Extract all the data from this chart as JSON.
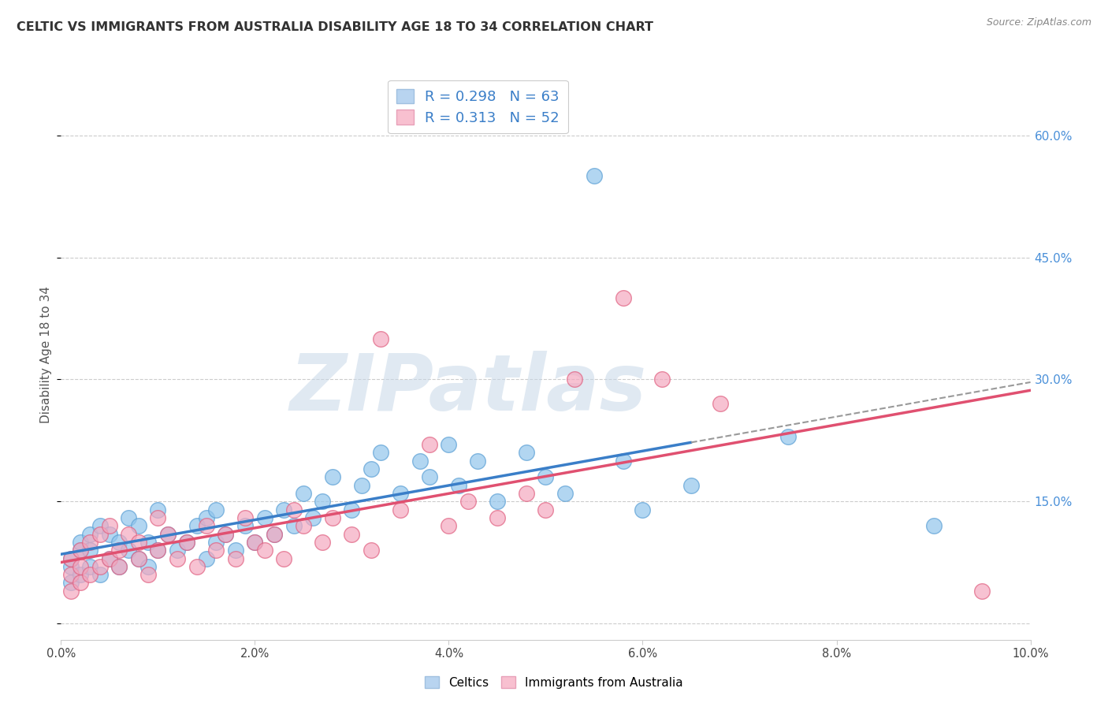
{
  "title": "CELTIC VS IMMIGRANTS FROM AUSTRALIA DISABILITY AGE 18 TO 34 CORRELATION CHART",
  "source_text": "Source: ZipAtlas.com",
  "ylabel": "Disability Age 18 to 34",
  "xlim": [
    0.0,
    0.1
  ],
  "ylim": [
    -0.02,
    0.68
  ],
  "xticks": [
    0.0,
    0.02,
    0.04,
    0.06,
    0.08,
    0.1
  ],
  "ytick_positions": [
    0.0,
    0.15,
    0.3,
    0.45,
    0.6
  ],
  "celtics_color": "#92C5EC",
  "celtics_edge": "#5A9FD4",
  "immigrants_color": "#F4A8BF",
  "immigrants_edge": "#E06080",
  "celtics_R": 0.298,
  "celtics_N": 63,
  "immigrants_R": 0.313,
  "immigrants_N": 52,
  "celtics_line_color": "#3A7EC8",
  "immigrants_line_color": "#E05070",
  "dashed_line_color": "#999999",
  "watermark": "ZIPatlas",
  "watermark_color_zip": "#c8d8e8",
  "watermark_color_atlas": "#a0b8cc",
  "background_color": "#ffffff",
  "grid_color": "#cccccc",
  "celtics_x": [
    0.001,
    0.001,
    0.001,
    0.002,
    0.002,
    0.002,
    0.003,
    0.003,
    0.003,
    0.004,
    0.004,
    0.005,
    0.005,
    0.006,
    0.006,
    0.007,
    0.007,
    0.008,
    0.008,
    0.009,
    0.009,
    0.01,
    0.01,
    0.011,
    0.012,
    0.013,
    0.014,
    0.015,
    0.015,
    0.016,
    0.016,
    0.017,
    0.018,
    0.019,
    0.02,
    0.021,
    0.022,
    0.023,
    0.024,
    0.025,
    0.026,
    0.027,
    0.028,
    0.03,
    0.031,
    0.032,
    0.033,
    0.035,
    0.037,
    0.038,
    0.04,
    0.041,
    0.043,
    0.045,
    0.048,
    0.05,
    0.052,
    0.055,
    0.058,
    0.06,
    0.065,
    0.075,
    0.09
  ],
  "celtics_y": [
    0.05,
    0.07,
    0.08,
    0.06,
    0.09,
    0.1,
    0.07,
    0.09,
    0.11,
    0.06,
    0.12,
    0.08,
    0.11,
    0.07,
    0.1,
    0.09,
    0.13,
    0.08,
    0.12,
    0.07,
    0.1,
    0.09,
    0.14,
    0.11,
    0.09,
    0.1,
    0.12,
    0.08,
    0.13,
    0.1,
    0.14,
    0.11,
    0.09,
    0.12,
    0.1,
    0.13,
    0.11,
    0.14,
    0.12,
    0.16,
    0.13,
    0.15,
    0.18,
    0.14,
    0.17,
    0.19,
    0.21,
    0.16,
    0.2,
    0.18,
    0.22,
    0.17,
    0.2,
    0.15,
    0.21,
    0.18,
    0.16,
    0.55,
    0.2,
    0.14,
    0.17,
    0.23,
    0.12
  ],
  "immigrants_x": [
    0.001,
    0.001,
    0.001,
    0.002,
    0.002,
    0.002,
    0.003,
    0.003,
    0.004,
    0.004,
    0.005,
    0.005,
    0.006,
    0.006,
    0.007,
    0.008,
    0.008,
    0.009,
    0.01,
    0.01,
    0.011,
    0.012,
    0.013,
    0.014,
    0.015,
    0.016,
    0.017,
    0.018,
    0.019,
    0.02,
    0.021,
    0.022,
    0.023,
    0.024,
    0.025,
    0.027,
    0.028,
    0.03,
    0.032,
    0.033,
    0.035,
    0.038,
    0.04,
    0.042,
    0.045,
    0.048,
    0.05,
    0.053,
    0.058,
    0.062,
    0.068,
    0.095
  ],
  "immigrants_y": [
    0.04,
    0.06,
    0.08,
    0.05,
    0.07,
    0.09,
    0.06,
    0.1,
    0.07,
    0.11,
    0.08,
    0.12,
    0.07,
    0.09,
    0.11,
    0.08,
    0.1,
    0.06,
    0.09,
    0.13,
    0.11,
    0.08,
    0.1,
    0.07,
    0.12,
    0.09,
    0.11,
    0.08,
    0.13,
    0.1,
    0.09,
    0.11,
    0.08,
    0.14,
    0.12,
    0.1,
    0.13,
    0.11,
    0.09,
    0.35,
    0.14,
    0.22,
    0.12,
    0.15,
    0.13,
    0.16,
    0.14,
    0.3,
    0.4,
    0.3,
    0.27,
    0.04
  ]
}
